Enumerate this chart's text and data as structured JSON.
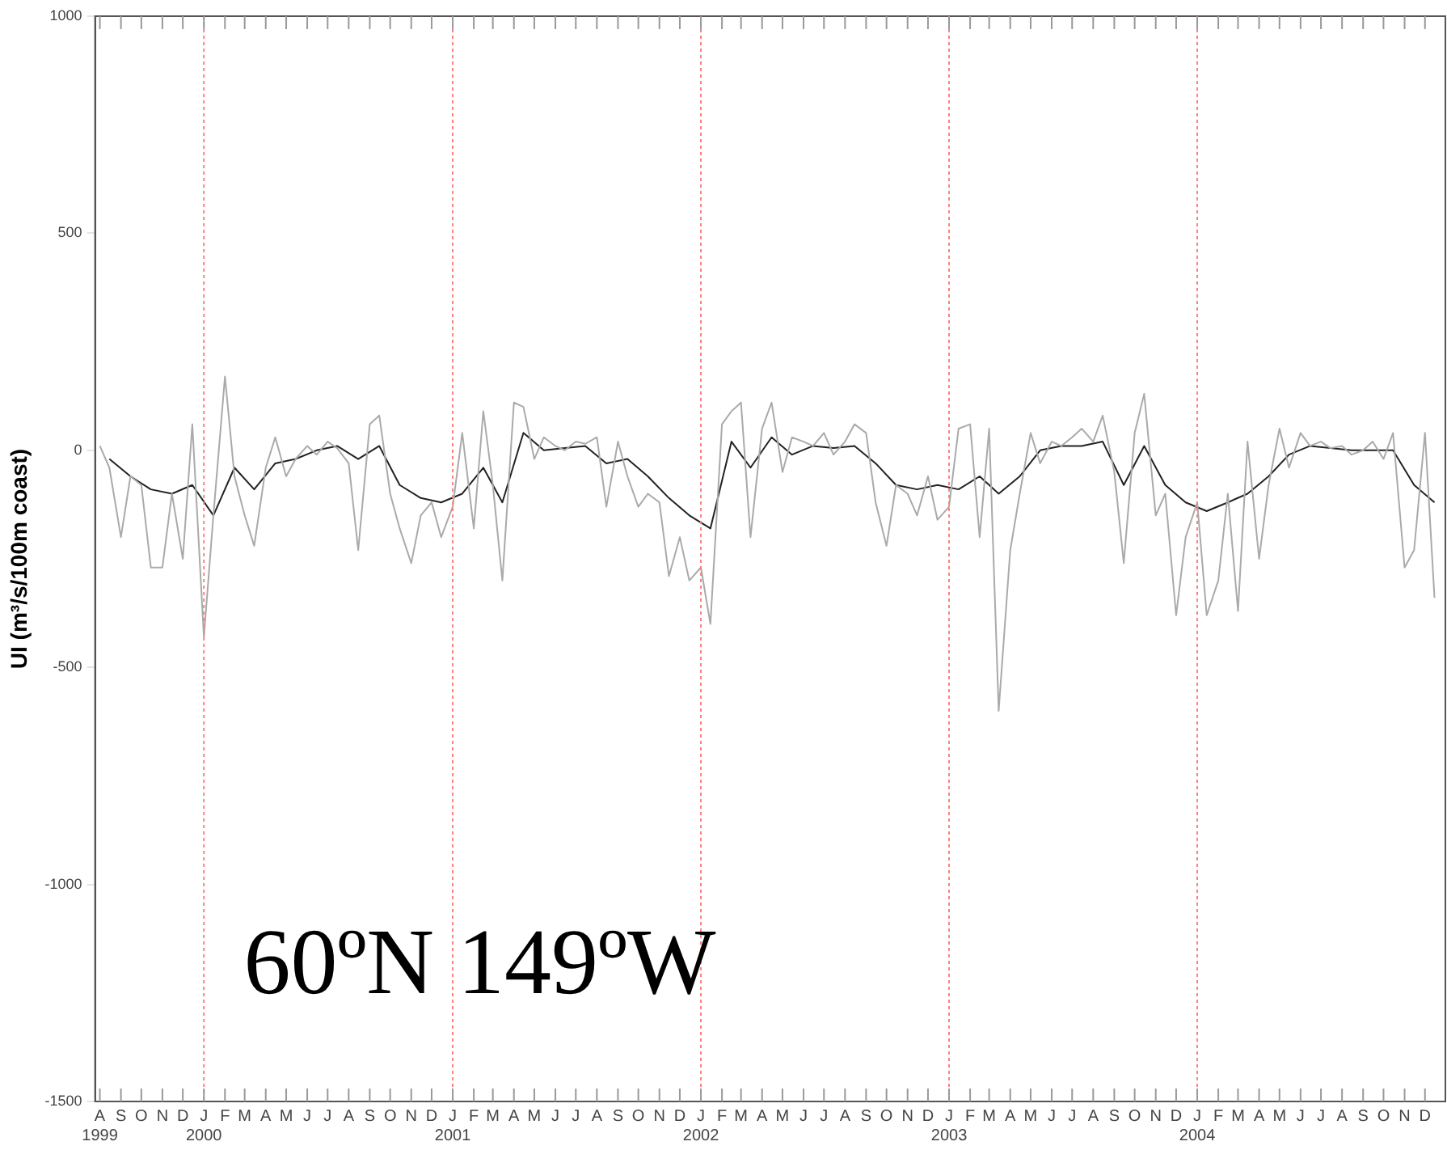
{
  "chart_data": {
    "type": "line",
    "ylabel": "UI (m³/s/100m coast)",
    "annotations": [
      "60ºN 149ºW"
    ],
    "xlim": [
      "1999-07-25",
      "2004-12-31"
    ],
    "ylim": [
      -1500,
      1000
    ],
    "yticks": [
      -1500,
      -1000,
      -500,
      0,
      500,
      1000
    ],
    "xticks": [
      {
        "value": "1999-08-01",
        "label": "A\n1999"
      },
      {
        "value": "1999-09-01",
        "label": "S"
      },
      {
        "value": "1999-10-01",
        "label": "O"
      },
      {
        "value": "1999-11-01",
        "label": "N"
      },
      {
        "value": "1999-12-01",
        "label": "D"
      },
      {
        "value": "2000-01-01",
        "label": "J\n2000"
      },
      {
        "value": "2000-02-01",
        "label": "F"
      },
      {
        "value": "2000-03-01",
        "label": "M"
      },
      {
        "value": "2000-04-01",
        "label": "A"
      },
      {
        "value": "2000-05-01",
        "label": "M"
      },
      {
        "value": "2000-06-01",
        "label": "J"
      },
      {
        "value": "2000-07-01",
        "label": "J"
      },
      {
        "value": "2000-08-01",
        "label": "A"
      },
      {
        "value": "2000-09-01",
        "label": "S"
      },
      {
        "value": "2000-10-01",
        "label": "O"
      },
      {
        "value": "2000-11-01",
        "label": "N"
      },
      {
        "value": "2000-12-01",
        "label": "D"
      },
      {
        "value": "2001-01-01",
        "label": "J\n2001"
      },
      {
        "value": "2001-02-01",
        "label": "F"
      },
      {
        "value": "2001-03-01",
        "label": "M"
      },
      {
        "value": "2001-04-01",
        "label": "A"
      },
      {
        "value": "2001-05-01",
        "label": "M"
      },
      {
        "value": "2001-06-01",
        "label": "J"
      },
      {
        "value": "2001-07-01",
        "label": "J"
      },
      {
        "value": "2001-08-01",
        "label": "A"
      },
      {
        "value": "2001-09-01",
        "label": "S"
      },
      {
        "value": "2001-10-01",
        "label": "O"
      },
      {
        "value": "2001-11-01",
        "label": "N"
      },
      {
        "value": "2001-12-01",
        "label": "D"
      },
      {
        "value": "2002-01-01",
        "label": "J\n2002"
      },
      {
        "value": "2002-02-01",
        "label": "F"
      },
      {
        "value": "2002-03-01",
        "label": "M"
      },
      {
        "value": "2002-04-01",
        "label": "A"
      },
      {
        "value": "2002-05-01",
        "label": "M"
      },
      {
        "value": "2002-06-01",
        "label": "J"
      },
      {
        "value": "2002-07-01",
        "label": "J"
      },
      {
        "value": "2002-08-01",
        "label": "A"
      },
      {
        "value": "2002-09-01",
        "label": "S"
      },
      {
        "value": "2002-10-01",
        "label": "O"
      },
      {
        "value": "2002-11-01",
        "label": "N"
      },
      {
        "value": "2002-12-01",
        "label": "D"
      },
      {
        "value": "2003-01-01",
        "label": "J\n2003"
      },
      {
        "value": "2003-02-01",
        "label": "F"
      },
      {
        "value": "2003-03-01",
        "label": "M"
      },
      {
        "value": "2003-04-01",
        "label": "A"
      },
      {
        "value": "2003-05-01",
        "label": "M"
      },
      {
        "value": "2003-06-01",
        "label": "J"
      },
      {
        "value": "2003-07-01",
        "label": "J"
      },
      {
        "value": "2003-08-01",
        "label": "A"
      },
      {
        "value": "2003-09-01",
        "label": "S"
      },
      {
        "value": "2003-10-01",
        "label": "O"
      },
      {
        "value": "2003-11-01",
        "label": "N"
      },
      {
        "value": "2003-12-01",
        "label": "D"
      },
      {
        "value": "2004-01-01",
        "label": "J\n2004"
      },
      {
        "value": "2004-02-01",
        "label": "F"
      },
      {
        "value": "2004-03-01",
        "label": "M"
      },
      {
        "value": "2004-04-01",
        "label": "A"
      },
      {
        "value": "2004-05-01",
        "label": "M"
      },
      {
        "value": "2004-06-01",
        "label": "J"
      },
      {
        "value": "2004-07-01",
        "label": "J"
      },
      {
        "value": "2004-08-01",
        "label": "A"
      },
      {
        "value": "2004-09-01",
        "label": "S"
      },
      {
        "value": "2004-10-01",
        "label": "O"
      },
      {
        "value": "2004-11-01",
        "label": "N"
      },
      {
        "value": "2004-12-01",
        "label": "D"
      }
    ],
    "grid": false,
    "legend": false,
    "marker": "none",
    "line_style": "solid",
    "ref_lines": [
      {
        "axis": "x",
        "value": "2000-01-01",
        "color": "#ff8080",
        "line_style": "dotted"
      },
      {
        "axis": "x",
        "value": "2001-01-01",
        "color": "#ff8080",
        "line_style": "dotted"
      },
      {
        "axis": "x",
        "value": "2002-01-01",
        "color": "#ff8080",
        "line_style": "dotted"
      },
      {
        "axis": "x",
        "value": "2003-01-01",
        "color": "#ff8080",
        "line_style": "dotted"
      },
      {
        "axis": "x",
        "value": "2004-01-01",
        "color": "#ff8080",
        "line_style": "dotted"
      }
    ],
    "series": [
      {
        "color": "#aaaaaa",
        "x": [
          "1999-08-01",
          "1999-08-15",
          "1999-09-01",
          "1999-09-15",
          "1999-10-01",
          "1999-10-15",
          "1999-11-01",
          "1999-11-15",
          "1999-12-01",
          "1999-12-15",
          "2000-01-01",
          "2000-01-15",
          "2000-02-01",
          "2000-02-15",
          "2000-03-01",
          "2000-03-15",
          "2000-04-01",
          "2000-04-15",
          "2000-05-01",
          "2000-05-15",
          "2000-06-01",
          "2000-06-15",
          "2000-07-01",
          "2000-07-15",
          "2000-08-01",
          "2000-08-15",
          "2000-09-01",
          "2000-09-15",
          "2000-10-01",
          "2000-10-15",
          "2000-11-01",
          "2000-11-15",
          "2000-12-01",
          "2000-12-15",
          "2001-01-01",
          "2001-01-15",
          "2001-02-01",
          "2001-02-15",
          "2001-03-01",
          "2001-03-15",
          "2001-04-01",
          "2001-04-15",
          "2001-05-01",
          "2001-05-15",
          "2001-06-01",
          "2001-06-15",
          "2001-07-01",
          "2001-07-15",
          "2001-08-01",
          "2001-08-15",
          "2001-09-01",
          "2001-09-15",
          "2001-10-01",
          "2001-10-15",
          "2001-11-01",
          "2001-11-15",
          "2001-12-01",
          "2001-12-15",
          "2002-01-01",
          "2002-01-15",
          "2002-02-01",
          "2002-02-15",
          "2002-03-01",
          "2002-03-15",
          "2002-04-01",
          "2002-04-15",
          "2002-05-01",
          "2002-05-15",
          "2002-06-01",
          "2002-06-15",
          "2002-07-01",
          "2002-07-15",
          "2002-08-01",
          "2002-08-15",
          "2002-09-01",
          "2002-09-15",
          "2002-10-01",
          "2002-10-15",
          "2002-11-01",
          "2002-11-15",
          "2002-12-01",
          "2002-12-15",
          "2003-01-01",
          "2003-01-15",
          "2003-02-01",
          "2003-02-15",
          "2003-03-01",
          "2003-03-15",
          "2003-04-01",
          "2003-04-15",
          "2003-05-01",
          "2003-05-15",
          "2003-06-01",
          "2003-06-15",
          "2003-07-01",
          "2003-07-15",
          "2003-08-01",
          "2003-08-15",
          "2003-09-01",
          "2003-09-15",
          "2003-10-01",
          "2003-10-15",
          "2003-11-01",
          "2003-11-15",
          "2003-12-01",
          "2003-12-15",
          "2004-01-01",
          "2004-01-15",
          "2004-02-01",
          "2004-02-15",
          "2004-03-01",
          "2004-03-15",
          "2004-04-01",
          "2004-04-15",
          "2004-05-01",
          "2004-05-15",
          "2004-06-01",
          "2004-06-15",
          "2004-07-01",
          "2004-07-15",
          "2004-08-01",
          "2004-08-15",
          "2004-09-01",
          "2004-09-15",
          "2004-10-01",
          "2004-10-15",
          "2004-11-01",
          "2004-11-15",
          "2004-12-01",
          "2004-12-15"
        ],
        "values": [
          10,
          -40,
          -200,
          -60,
          -80,
          -270,
          -270,
          -100,
          -250,
          60,
          -430,
          -150,
          170,
          -60,
          -150,
          -220,
          -40,
          30,
          -60,
          -20,
          10,
          -10,
          20,
          5,
          -30,
          -230,
          60,
          80,
          -100,
          -180,
          -260,
          -150,
          -120,
          -200,
          -130,
          40,
          -180,
          90,
          -80,
          -300,
          110,
          100,
          -20,
          30,
          10,
          0,
          20,
          15,
          30,
          -130,
          20,
          -60,
          -130,
          -100,
          -120,
          -290,
          -200,
          -300,
          -270,
          -400,
          60,
          90,
          110,
          -200,
          50,
          110,
          -50,
          30,
          20,
          10,
          40,
          -10,
          20,
          60,
          40,
          -120,
          -220,
          -80,
          -100,
          -150,
          -60,
          -160,
          -130,
          50,
          60,
          -200,
          50,
          -600,
          -230,
          -100,
          40,
          -30,
          20,
          10,
          30,
          50,
          20,
          80,
          -50,
          -260,
          40,
          130,
          -150,
          -100,
          -380,
          -200,
          -120,
          -380,
          -300,
          -100,
          -370,
          20,
          -250,
          -80,
          50,
          -40,
          40,
          10,
          20,
          5,
          10,
          -10,
          0,
          20,
          -20,
          40,
          -270,
          -230,
          40,
          -340
        ]
      },
      {
        "color": "#222222",
        "x": [
          "1999-08-15",
          "1999-09-15",
          "1999-10-15",
          "1999-11-15",
          "1999-12-15",
          "2000-01-15",
          "2000-02-15",
          "2000-03-15",
          "2000-04-15",
          "2000-05-15",
          "2000-06-15",
          "2000-07-15",
          "2000-08-15",
          "2000-09-15",
          "2000-10-15",
          "2000-11-15",
          "2000-12-15",
          "2001-01-15",
          "2001-02-15",
          "2001-03-15",
          "2001-04-15",
          "2001-05-15",
          "2001-06-15",
          "2001-07-15",
          "2001-08-15",
          "2001-09-15",
          "2001-10-15",
          "2001-11-15",
          "2001-12-15",
          "2002-01-15",
          "2002-02-15",
          "2002-03-15",
          "2002-04-15",
          "2002-05-15",
          "2002-06-15",
          "2002-07-15",
          "2002-08-15",
          "2002-09-15",
          "2002-10-15",
          "2002-11-15",
          "2002-12-15",
          "2003-01-15",
          "2003-02-15",
          "2003-03-15",
          "2003-04-15",
          "2003-05-15",
          "2003-06-15",
          "2003-07-15",
          "2003-08-15",
          "2003-09-15",
          "2003-10-15",
          "2003-11-15",
          "2003-12-15",
          "2004-01-15",
          "2004-02-15",
          "2004-03-15",
          "2004-04-15",
          "2004-05-15",
          "2004-06-15",
          "2004-07-15",
          "2004-08-15",
          "2004-09-15",
          "2004-10-15",
          "2004-11-15",
          "2004-12-15"
        ],
        "values": [
          -20,
          -60,
          -90,
          -100,
          -80,
          -150,
          -40,
          -90,
          -30,
          -20,
          0,
          10,
          -20,
          10,
          -80,
          -110,
          -120,
          -100,
          -40,
          -120,
          40,
          0,
          5,
          10,
          -30,
          -20,
          -60,
          -110,
          -150,
          -180,
          20,
          -40,
          30,
          -10,
          10,
          5,
          10,
          -30,
          -80,
          -90,
          -80,
          -90,
          -60,
          -100,
          -60,
          0,
          10,
          10,
          20,
          -80,
          10,
          -80,
          -120,
          -140,
          -120,
          -100,
          -60,
          -10,
          10,
          5,
          0,
          0,
          0,
          -80,
          -120
        ]
      }
    ]
  }
}
